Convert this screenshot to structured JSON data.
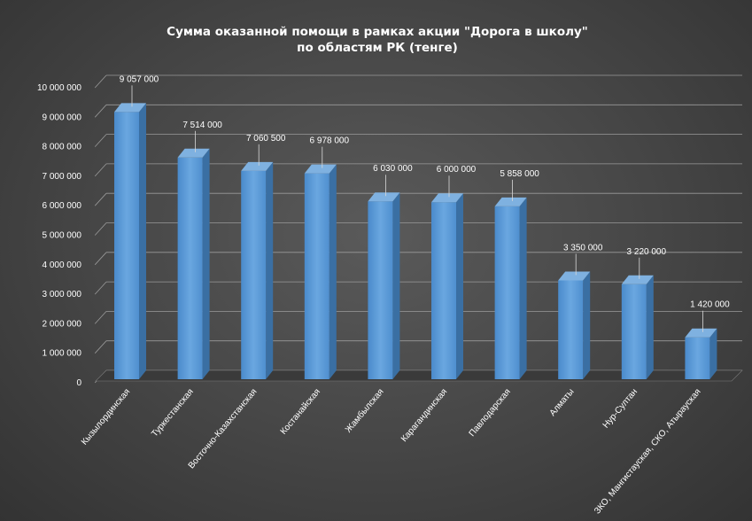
{
  "chart_data": {
    "type": "bar",
    "title": "Сумма оказанной помощи в рамках акции \"Дорога в школу\"",
    "subtitle": "по областям РК (тенге)",
    "categories": [
      "Кызылординская",
      "Туркестанская",
      "Восточно-Казахстанская",
      "Костанайская",
      "Жамбылская",
      "Карагандинская",
      "Павлодарская",
      "Алматы",
      "Нур-Султан",
      "ЗКО, Мангистауская, СКО, Атырауская"
    ],
    "values": [
      9057000,
      7514000,
      7060500,
      6978000,
      6030000,
      6000000,
      5858000,
      3350000,
      3220000,
      1420000
    ],
    "data_labels": [
      "9 057 000",
      "7 514 000",
      "7 060 500",
      "6 978 000",
      "6 030 000",
      "6 000 000",
      "5 858 000",
      "3 350 000",
      "3 220 000",
      "1 420 000"
    ],
    "yticks": [
      0,
      1000000,
      2000000,
      3000000,
      4000000,
      5000000,
      6000000,
      7000000,
      8000000,
      9000000,
      10000000
    ],
    "ytick_labels": [
      "0",
      "1 000 000",
      "2 000 000",
      "3 000 000",
      "4 000 000",
      "5 000 000",
      "6 000 000",
      "7 000 000",
      "8 000 000",
      "9 000 000",
      "10 000 000"
    ],
    "ylim": [
      0,
      10000000
    ],
    "xlabel": "",
    "ylabel": "",
    "grid": true,
    "legend": "none",
    "style": "3d-column",
    "colors": {
      "bar_front": "#5b9bd5",
      "bar_side": "#3a6fa3",
      "bar_top": "#7fb1e0",
      "grid": "#9a9a9a",
      "text": "#ffffff"
    }
  }
}
